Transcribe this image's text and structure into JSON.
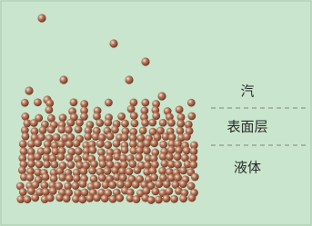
{
  "labels": {
    "vapor": "汽",
    "surface": "表面层",
    "liquid": "液体"
  }
}
